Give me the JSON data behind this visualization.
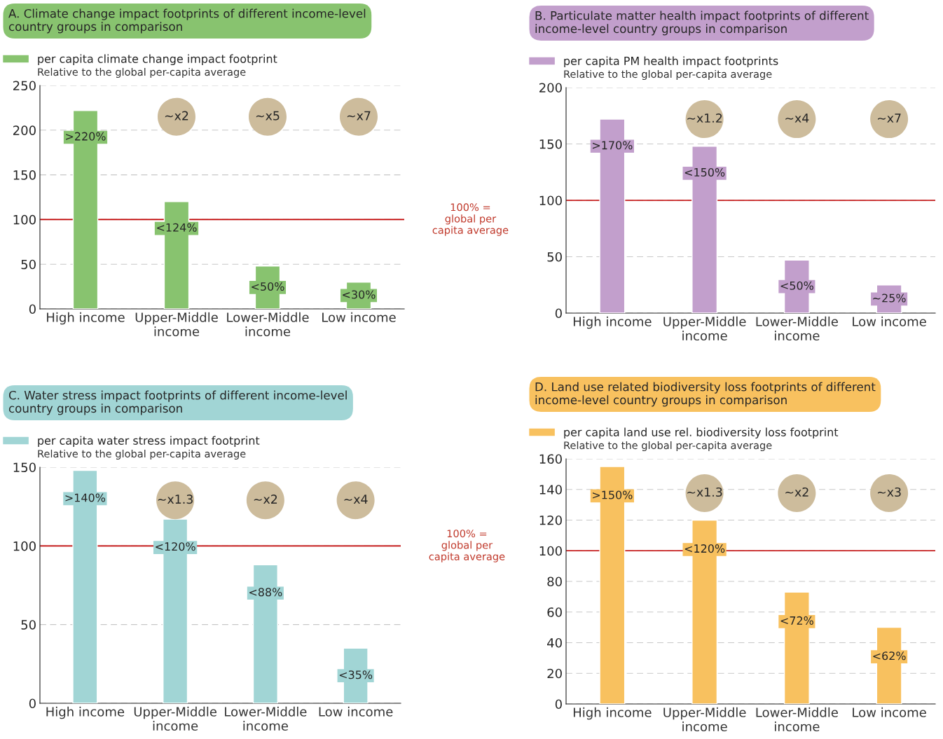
{
  "chart_data": [
    {
      "type": "bar",
      "title": "A. Climate change impact footprints of different income-level\ncountry groups in comparison",
      "subtitle": "Relative to the global per-capita average",
      "categories": [
        "High income",
        "Upper-Middle\nincome",
        "Lower-Middle\nincome",
        "Low income"
      ],
      "series": [
        {
          "name": "per capita climate change impact footprint",
          "color": "#88c36f",
          "values": [
            222,
            120,
            48,
            30
          ],
          "value_labels": [
            ">220%",
            "<124%",
            "<50%",
            "<30%"
          ]
        }
      ],
      "ylim": [
        0,
        250
      ],
      "yticks": [
        0,
        50,
        100,
        150,
        200,
        250
      ],
      "grid": "y",
      "legend": "top left",
      "ref_lines": [
        {
          "axis": "y",
          "value": 100,
          "color": "#c00000"
        }
      ],
      "annotations": [
        "~x2",
        "~x5",
        "~x7",
        "100% =\nglobal per\ncapita average"
      ]
    },
    {
      "type": "bar",
      "title": "B. Particulate matter health impact footprints of different\nincome-level country groups in comparison",
      "subtitle": "Relative to the global per-capita average",
      "categories": [
        "High income",
        "Upper-Middle\nincome",
        "Lower-Middle\nincome",
        "Low income"
      ],
      "series": [
        {
          "name": "per capita PM health impact footprints",
          "color": "#c29fcc",
          "values": [
            172,
            148,
            47,
            25
          ],
          "value_labels": [
            ">170%",
            "<150%",
            "<50%",
            "~25%"
          ]
        }
      ],
      "ylim": [
        0,
        200
      ],
      "yticks": [
        0,
        50,
        100,
        150,
        200
      ],
      "grid": "y",
      "legend": "top left",
      "ref_lines": [
        {
          "axis": "y",
          "value": 100,
          "color": "#c00000"
        }
      ],
      "annotations": [
        "~x1.2",
        "~x4",
        "~x7"
      ]
    },
    {
      "type": "bar",
      "title": "C. Water stress impact footprints of different income-level\ncountry groups in comparison",
      "subtitle": "Relative to the global per-capita average",
      "categories": [
        "High income",
        "Upper-Middle\nincome",
        "Lower-Middle\nincome",
        "Low income"
      ],
      "series": [
        {
          "name": "per capita water stress impact footprint",
          "color": "#a1d5d5",
          "values": [
            148,
            117,
            88,
            35
          ],
          "value_labels": [
            ">140%",
            "<120%",
            "<88%",
            "<35%"
          ]
        }
      ],
      "ylim": [
        0,
        150
      ],
      "yticks": [
        0,
        50,
        100,
        150
      ],
      "grid": "y",
      "legend": "top left",
      "ref_lines": [
        {
          "axis": "y",
          "value": 100,
          "color": "#c00000"
        }
      ],
      "annotations": [
        "~x1.3",
        "~x2",
        "~x4",
        "100% =\nglobal per\ncapita average"
      ]
    },
    {
      "type": "bar",
      "title": "D. Land use related biodiversity loss footprints of different\nincome-level country groups in comparison",
      "subtitle": "Relative to the global per-capita average",
      "categories": [
        "High income",
        "Upper-Middle\nincome",
        "Lower-Middle\nincome",
        "Low income"
      ],
      "series": [
        {
          "name": "per capita land use rel. biodiversity loss footprint",
          "color": "#f8c15f",
          "values": [
            155,
            120,
            73,
            50
          ],
          "value_labels": [
            ">150%",
            "<120%",
            "<72%",
            "<62%"
          ]
        }
      ],
      "ylim": [
        0,
        160
      ],
      "yticks": [
        0,
        20,
        40,
        60,
        80,
        100,
        120,
        140,
        160
      ],
      "grid": "y",
      "legend": "top left",
      "ref_lines": [
        {
          "axis": "y",
          "value": 100,
          "color": "#c00000"
        }
      ],
      "annotations": [
        "~x1.3",
        "~x2",
        "~x3"
      ]
    }
  ]
}
